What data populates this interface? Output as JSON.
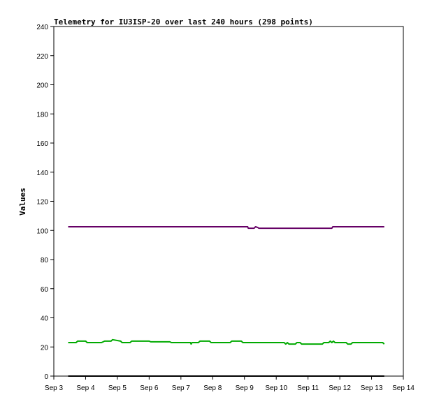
{
  "chart_data": {
    "type": "line",
    "title": "Telemetry for IU3ISP-20 over last 240 hours (298 points)",
    "xlabel": "",
    "ylabel": "Values",
    "x_tick_labels": [
      "Sep 3",
      "Sep 4",
      "Sep 5",
      "Sep 6",
      "Sep 7",
      "Sep 8",
      "Sep 9",
      "Sep 10",
      "Sep 11",
      "Sep 12",
      "Sep 13",
      "Sep 14"
    ],
    "y_ticks": [
      0,
      20,
      40,
      60,
      80,
      100,
      120,
      140,
      160,
      180,
      200,
      220,
      240
    ],
    "xlim": [
      3,
      14
    ],
    "ylim": [
      0,
      240
    ],
    "grid": false,
    "legend": "none",
    "series": [
      {
        "color": "#660066",
        "x": [
          3.45,
          9.1,
          9.12,
          9.3,
          9.35,
          9.42,
          9.45,
          11.75,
          11.78,
          13.4
        ],
        "y": [
          102.5,
          102.5,
          101.5,
          101.5,
          102.5,
          102,
          101.5,
          101.5,
          102.5,
          102.5
        ]
      },
      {
        "color": "#00aa00",
        "x": [
          3.45,
          3.7,
          3.75,
          4.0,
          4.05,
          4.5,
          4.6,
          4.8,
          4.85,
          5.1,
          5.15,
          5.4,
          5.45,
          6.0,
          6.05,
          6.65,
          6.7,
          7.3,
          7.32,
          7.35,
          7.55,
          7.6,
          7.9,
          7.95,
          8.55,
          8.6,
          8.9,
          8.95,
          10.25,
          10.3,
          10.35,
          10.4,
          10.6,
          10.65,
          10.75,
          10.8,
          11.45,
          11.5,
          11.65,
          11.7,
          11.75,
          11.8,
          11.85,
          12.0,
          12.05,
          12.2,
          12.25,
          12.35,
          12.4,
          12.5,
          12.55,
          13.35,
          13.4
        ],
        "y": [
          23,
          23,
          24,
          24,
          23,
          23,
          24,
          24,
          25,
          24,
          23,
          23,
          24,
          24,
          23.5,
          23.5,
          23,
          23,
          22,
          23,
          23,
          24,
          24,
          23,
          23,
          24,
          24,
          23,
          23,
          22,
          23,
          22,
          22,
          23,
          23,
          22,
          22,
          23,
          23,
          24,
          23,
          24,
          23,
          23,
          23,
          23,
          22,
          22,
          23,
          23,
          23,
          23,
          22
        ]
      },
      {
        "color": "#000000",
        "x": [
          3.45,
          13.4
        ],
        "y": [
          0,
          0
        ]
      }
    ]
  }
}
